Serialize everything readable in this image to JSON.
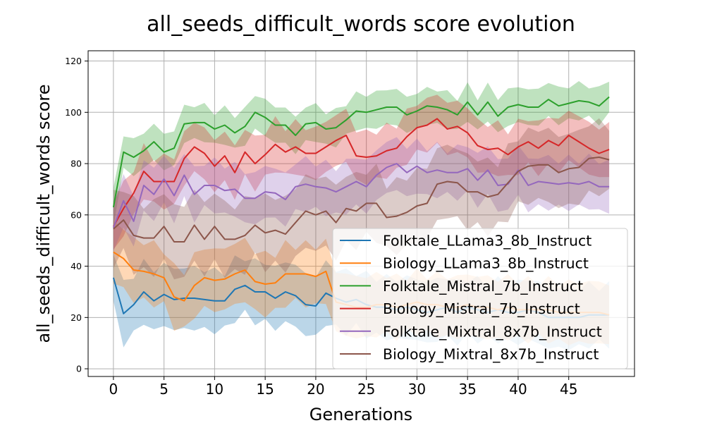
{
  "chart_data": {
    "type": "line",
    "title": "all_seeds_difficult_words score evolution",
    "xlabel": "Generations",
    "ylabel": "all_seeds_difficult_words score",
    "xlim": [
      -2.5,
      51.5
    ],
    "ylim": [
      -3,
      124
    ],
    "xticks": [
      0,
      5,
      10,
      15,
      20,
      25,
      30,
      35,
      40,
      45
    ],
    "yticks": [
      0,
      20,
      40,
      60,
      80,
      100,
      120
    ],
    "grid": true,
    "legend_position": "lower right",
    "band_opacity": 0.3,
    "series": [
      {
        "name": "Folktale_LLama3_8b_Instruct",
        "color": "#1f77b4",
        "values": [
          35.5,
          21.5,
          25,
          30,
          26.5,
          29,
          27,
          27.5,
          27.5,
          27,
          26.5,
          26.5,
          31,
          32.5,
          30,
          30,
          27.5,
          30,
          28.5,
          25,
          24.5,
          29.5,
          27.5,
          26,
          27,
          25,
          24,
          24,
          23,
          24,
          23,
          22,
          23,
          24,
          22,
          24,
          23,
          22,
          23,
          22,
          22,
          23,
          22,
          20,
          20,
          20,
          20,
          21,
          21,
          21
        ],
        "band": 12
      },
      {
        "name": "Biology_LLama3_8b_Instruct",
        "color": "#ff7f0e",
        "values": [
          45.5,
          43,
          38.5,
          38,
          37,
          35.5,
          28,
          26.5,
          32.5,
          35.5,
          34.5,
          35,
          37,
          38.5,
          34,
          33,
          33.5,
          37,
          37,
          37,
          36,
          38,
          26,
          25,
          24,
          24,
          25,
          25,
          24,
          25,
          26,
          25,
          25,
          24,
          24,
          25,
          24,
          24,
          23,
          24,
          23,
          23,
          23,
          23,
          22,
          22,
          22,
          22,
          22,
          21
        ],
        "band": 12
      },
      {
        "name": "Folktale_Mistral_7b_Instruct",
        "color": "#2ca02c",
        "values": [
          63,
          84.5,
          82.5,
          85,
          88.5,
          84.5,
          86,
          95.5,
          96,
          96,
          93.5,
          95,
          92,
          94.5,
          100,
          98,
          95,
          95,
          91,
          95.5,
          96,
          93.5,
          94,
          97,
          100.5,
          100,
          101,
          102,
          102,
          99,
          100.5,
          102.5,
          102,
          101,
          99,
          104,
          99,
          104,
          98.5,
          102,
          103,
          102,
          102,
          105,
          102.5,
          103.5,
          104.5,
          104,
          102.5,
          106
        ],
        "band": 7
      },
      {
        "name": "Biology_Mistral_7b_Instruct",
        "color": "#d62728",
        "values": [
          55.5,
          62.5,
          68.5,
          77,
          73,
          73,
          73,
          82,
          86.5,
          84,
          79,
          83,
          76.5,
          84.5,
          80,
          83.5,
          87.5,
          84.5,
          86.5,
          84,
          84,
          86.5,
          89,
          91,
          83,
          82.5,
          83,
          85,
          86,
          90.5,
          94,
          95,
          97.5,
          93.5,
          94.5,
          92,
          87,
          85.5,
          86,
          83.5,
          86.5,
          88.5,
          86,
          89,
          87,
          91,
          88.5,
          86,
          84,
          85.5
        ],
        "band": 10
      },
      {
        "name": "Folktale_Mixtral_8x7b_Instruct",
        "color": "#9467bd",
        "values": [
          55,
          65.5,
          57.5,
          71.5,
          68,
          74,
          67.5,
          75.5,
          68,
          71.5,
          71.5,
          69.5,
          70,
          66.5,
          66.5,
          69,
          68.5,
          66,
          71,
          72,
          71,
          70.5,
          69,
          71,
          73,
          71,
          75.5,
          78.5,
          80,
          76.5,
          79,
          76.5,
          77.5,
          76.5,
          76.5,
          78,
          73.5,
          77.5,
          71.5,
          72,
          77.5,
          71.5,
          73,
          72.5,
          72,
          72.5,
          72,
          73,
          71,
          71
        ],
        "band": 10
      },
      {
        "name": "Biology_Mixtral_8x7b_Instruct",
        "color": "#8c564b",
        "values": [
          54.5,
          58,
          52,
          51,
          51,
          55.5,
          49.5,
          49.5,
          56,
          50.5,
          55.5,
          50.5,
          50.5,
          52,
          56,
          53,
          54,
          52.5,
          57,
          61.5,
          60,
          61.5,
          57,
          62.5,
          61.5,
          64.5,
          64.5,
          59,
          59.5,
          61,
          63.5,
          64.5,
          72,
          73,
          72.5,
          69,
          69,
          67,
          68,
          72.5,
          77,
          79,
          79.5,
          79.5,
          76.5,
          78,
          78.5,
          82,
          82.5,
          81.5
        ],
        "band": 14
      }
    ]
  }
}
